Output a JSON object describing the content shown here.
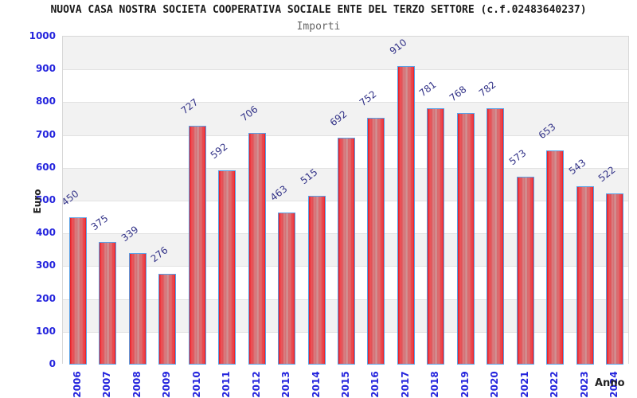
{
  "chart_data": {
    "type": "bar",
    "title": "NUOVA CASA NOSTRA SOCIETA COOPERATIVA SOCIALE ENTE DEL TERZO SETTORE (c.f.02483640237)",
    "subtitle": "Importi",
    "xlabel": "Anno",
    "ylabel": "Euro",
    "categories": [
      "2006",
      "2007",
      "2008",
      "2009",
      "2010",
      "2011",
      "2012",
      "2013",
      "2014",
      "2015",
      "2016",
      "2017",
      "2018",
      "2019",
      "2020",
      "2021",
      "2022",
      "2023",
      "2024"
    ],
    "values": [
      450,
      375,
      339,
      276,
      727,
      592,
      706,
      463,
      515,
      692,
      752,
      910,
      781,
      768,
      782,
      573,
      653,
      543,
      522
    ],
    "ylim": [
      0,
      1000
    ],
    "y_tick_step": 100,
    "grid": "alternating-bands",
    "legend_position": "none",
    "colors": {
      "bar_fill_edge": "#e31e25",
      "bar_fill_mid": "#d19092",
      "bar_border": "#58a0e6",
      "band_gray": "#f2f2f2",
      "band_white": "#ffffff",
      "gridline": "#e2e2e2",
      "plot_border": "#d8d8d8",
      "tick_label": "#2424dd",
      "value_label": "#333388",
      "title": "#1a1a1a",
      "subtitle": "#666666",
      "axis_title": "#222222"
    }
  }
}
